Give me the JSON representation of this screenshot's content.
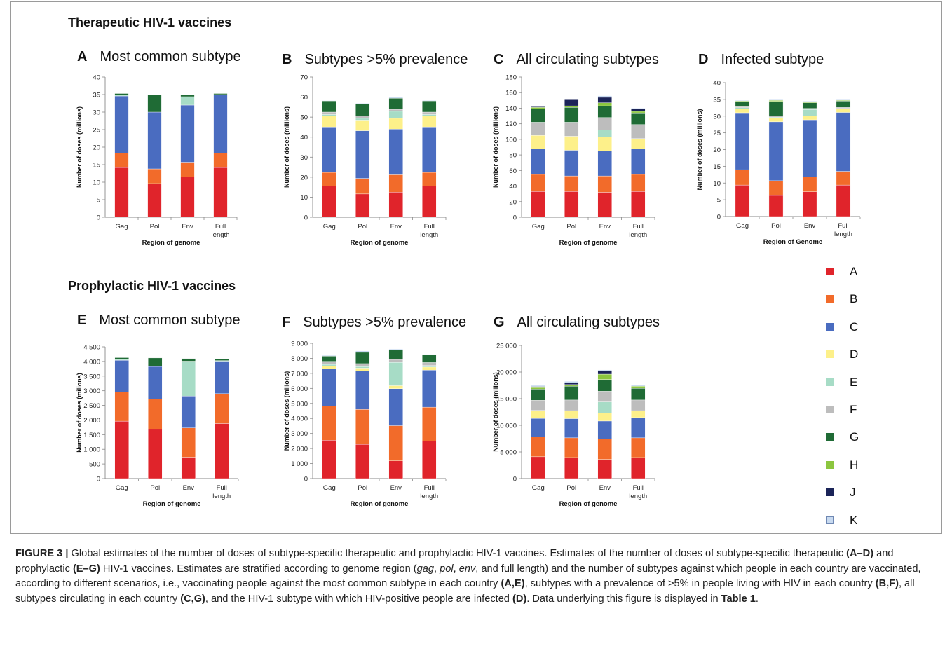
{
  "section_therapeutic": "Therapeutic HIV-1 vaccines",
  "section_prophylactic": "Prophylactic HIV-1 vaccines",
  "legend": {
    "items": [
      {
        "label": "A",
        "color": "#e0242b"
      },
      {
        "label": "B",
        "color": "#f26b2a"
      },
      {
        "label": "C",
        "color": "#4a6cc0"
      },
      {
        "label": "D",
        "color": "#fdf08a"
      },
      {
        "label": "E",
        "color": "#a7dcc6"
      },
      {
        "label": "F",
        "color": "#bdbdbd"
      },
      {
        "label": "G",
        "color": "#1f6b35"
      },
      {
        "label": "H",
        "color": "#8cc63f"
      },
      {
        "label": "J",
        "color": "#1b2458"
      },
      {
        "label": "K",
        "color": "#c8daf0"
      }
    ]
  },
  "caption": {
    "fig_label": "FIGURE 3 |",
    "t1": " Global estimates of the number of doses of subtype-specific therapeutic and prophylactic HIV-1 vaccines. Estimates of the number of doses of subtype-specific therapeutic ",
    "b1": "(A–D)",
    "t2": " and prophylactic ",
    "b2": "(E–G)",
    "t3": " HIV-1 vaccines. Estimates are stratified according to genome region (",
    "i1": "gag",
    "t4": ", ",
    "i2": "pol",
    "t5": ", ",
    "i3": "env",
    "t6": ", and full length) and the number of subtypes against which people in each country are vaccinated, according to different scenarios, i.e., vaccinating people against the most common subtype in each country ",
    "b3": "(A,E)",
    "t7": ", subtypes with a prevalence of >5% in people living with HIV in each country ",
    "b4": "(B,F)",
    "t8": ", all subtypes circulating in each country ",
    "b5": "(C,G)",
    "t9": ", and the HIV-1 subtype with which HIV-positive people are infected ",
    "b6": "(D)",
    "t10": ". Data underlying this figure is displayed in ",
    "b7": "Table 1",
    "t11": "."
  },
  "chart_data": [
    {
      "id": "A",
      "letter": "A",
      "title": "Most common subtype",
      "type": "bar",
      "ylabel": "Number of doses (millions)",
      "xlabel": "Region of genome",
      "ylim": [
        0,
        40
      ],
      "yticks": [
        "0",
        "5",
        "10",
        "15",
        "20",
        "25",
        "30",
        "35",
        "40"
      ],
      "categories": [
        "Gag",
        "Pol",
        "Env",
        "Full length"
      ],
      "series": [
        {
          "name": "A",
          "values": [
            14.2,
            9.6,
            11.5,
            14.2
          ]
        },
        {
          "name": "B",
          "values": [
            4.1,
            4.2,
            4.2,
            4.1
          ]
        },
        {
          "name": "C",
          "values": [
            16.3,
            16.2,
            16.3,
            16.7
          ]
        },
        {
          "name": "D",
          "values": [
            0,
            0,
            0,
            0
          ]
        },
        {
          "name": "E",
          "values": [
            0.3,
            0,
            2.4,
            0
          ]
        },
        {
          "name": "F",
          "values": [
            0,
            0,
            0,
            0
          ]
        },
        {
          "name": "G",
          "values": [
            0.4,
            5,
            0.5,
            0.3
          ]
        },
        {
          "name": "H",
          "values": [
            0,
            0,
            0,
            0
          ]
        },
        {
          "name": "J",
          "values": [
            0,
            0,
            0,
            0
          ]
        },
        {
          "name": "K",
          "values": [
            0,
            0,
            0,
            0
          ]
        }
      ]
    },
    {
      "id": "B",
      "letter": "B",
      "title": "Subtypes >5% prevalence",
      "type": "bar",
      "ylabel": "Number of doses (millions)",
      "xlabel": "Region of genome",
      "ylim": [
        0,
        70
      ],
      "yticks": [
        "0",
        "10",
        "20",
        "30",
        "40",
        "50",
        "60",
        "70"
      ],
      "categories": [
        "Gag",
        "Pol",
        "Env",
        "Full length"
      ],
      "series": [
        {
          "name": "A",
          "values": [
            15.6,
            11.6,
            12.5,
            15.6
          ]
        },
        {
          "name": "B",
          "values": [
            6.8,
            7.8,
            8.7,
            6.8
          ]
        },
        {
          "name": "C",
          "values": [
            22.7,
            23.8,
            22.8,
            22.7
          ]
        },
        {
          "name": "D",
          "values": [
            5.4,
            5.3,
            5.4,
            5.4
          ]
        },
        {
          "name": "E",
          "values": [
            0.8,
            0.9,
            3.5,
            0.8
          ]
        },
        {
          "name": "F",
          "values": [
            1.2,
            1.2,
            1.0,
            1.2
          ]
        },
        {
          "name": "G",
          "values": [
            5.6,
            6.1,
            5.5,
            5.6
          ]
        },
        {
          "name": "H",
          "values": [
            0,
            0,
            0,
            0
          ]
        },
        {
          "name": "J",
          "values": [
            0,
            0,
            0,
            0
          ]
        },
        {
          "name": "K",
          "values": [
            0.2,
            0.3,
            0.5,
            0.3
          ]
        }
      ]
    },
    {
      "id": "C",
      "letter": "C",
      "title": "All circulating subtypes",
      "type": "bar",
      "ylabel": "Number of doses (millions)",
      "xlabel": "Region of genome",
      "ylim": [
        0,
        180
      ],
      "yticks": [
        "0",
        "20",
        "40",
        "60",
        "80",
        "100",
        "120",
        "140",
        "160",
        "180"
      ],
      "categories": [
        "Gag",
        "Pol",
        "Env",
        "Full length"
      ],
      "series": [
        {
          "name": "A",
          "values": [
            33,
            33,
            32,
            33
          ]
        },
        {
          "name": "B",
          "values": [
            22,
            20,
            21,
            22
          ]
        },
        {
          "name": "C",
          "values": [
            33,
            33,
            32,
            33
          ]
        },
        {
          "name": "D",
          "values": [
            17,
            18,
            18,
            13
          ]
        },
        {
          "name": "E",
          "values": [
            0,
            0,
            9,
            0
          ]
        },
        {
          "name": "F",
          "values": [
            17,
            18,
            16,
            18
          ]
        },
        {
          "name": "G",
          "values": [
            17,
            19,
            15,
            15
          ]
        },
        {
          "name": "H",
          "values": [
            2,
            2,
            4,
            2
          ]
        },
        {
          "name": "J",
          "values": [
            1,
            8,
            7,
            3
          ]
        },
        {
          "name": "K",
          "values": [
            1,
            1,
            2,
            1
          ]
        }
      ]
    },
    {
      "id": "D",
      "letter": "D",
      "title": "Infected subtype",
      "type": "bar",
      "ylabel": "Number of doses (millions)",
      "xlabel": "Region of Genome",
      "ylim": [
        0,
        40
      ],
      "yticks": [
        "0",
        "5",
        "10",
        "15",
        "20",
        "25",
        "30",
        "35",
        "40"
      ],
      "categories": [
        "Gag",
        "Pol",
        "Env",
        "Full length"
      ],
      "series": [
        {
          "name": "A",
          "values": [
            9.4,
            6.3,
            7.4,
            9.4
          ]
        },
        {
          "name": "B",
          "values": [
            4.6,
            4.4,
            4.4,
            4.1
          ]
        },
        {
          "name": "C",
          "values": [
            17,
            17.6,
            17.1,
            17.6
          ]
        },
        {
          "name": "D",
          "values": [
            1.2,
            1.2,
            1.2,
            1.0
          ]
        },
        {
          "name": "E",
          "values": [
            0.3,
            0.2,
            1.9,
            0.2
          ]
        },
        {
          "name": "F",
          "values": [
            0.3,
            0.3,
            0.3,
            0.3
          ]
        },
        {
          "name": "G",
          "values": [
            1.5,
            4.4,
            1.7,
            1.9
          ]
        },
        {
          "name": "H",
          "values": [
            0.2,
            0.3,
            0.3,
            0.2
          ]
        },
        {
          "name": "J",
          "values": [
            0,
            0,
            0,
            0
          ]
        },
        {
          "name": "K",
          "values": [
            0.2,
            0.2,
            0.2,
            0.2
          ]
        }
      ]
    },
    {
      "id": "E",
      "letter": "E",
      "title": "Most common subtype",
      "type": "bar",
      "ylabel": "Number of doses (milions)",
      "xlabel": "Region of genome",
      "ylim": [
        0,
        4500
      ],
      "yticks": [
        "0",
        "500",
        "1 000",
        "1 500",
        "2 000",
        "2 500",
        "3 000",
        "3 500",
        "4 000",
        "4 500"
      ],
      "categories": [
        "Gag",
        "Pol",
        "Env",
        "Full length"
      ],
      "series": [
        {
          "name": "A",
          "values": [
            1960,
            1680,
            730,
            1880
          ]
        },
        {
          "name": "B",
          "values": [
            1000,
            1040,
            1000,
            1020
          ]
        },
        {
          "name": "C",
          "values": [
            1080,
            1110,
            1090,
            1110
          ]
        },
        {
          "name": "D",
          "values": [
            0,
            0,
            0,
            0
          ]
        },
        {
          "name": "E",
          "values": [
            30,
            0,
            1190,
            20
          ]
        },
        {
          "name": "F",
          "values": [
            0,
            0,
            0,
            0
          ]
        },
        {
          "name": "G",
          "values": [
            60,
            290,
            90,
            60
          ]
        },
        {
          "name": "H",
          "values": [
            0,
            0,
            0,
            0
          ]
        },
        {
          "name": "J",
          "values": [
            0,
            0,
            0,
            0
          ]
        },
        {
          "name": "K",
          "values": [
            0,
            0,
            0,
            0
          ]
        }
      ]
    },
    {
      "id": "F",
      "letter": "F",
      "title": "Subtypes >5% prevalence",
      "type": "bar",
      "ylabel": "Number of doses (milions)",
      "xlabel": "Region of genome",
      "ylim": [
        0,
        9000
      ],
      "yticks": [
        "0",
        "1 000",
        "2 000",
        "3 000",
        "4 000",
        "5 000",
        "6 000",
        "7 000",
        "8 000",
        "9 000"
      ],
      "categories": [
        "Gag",
        "Pol",
        "Env",
        "Full length"
      ],
      "series": [
        {
          "name": "A",
          "values": [
            2550,
            2280,
            1180,
            2500
          ]
        },
        {
          "name": "B",
          "values": [
            2280,
            2320,
            2340,
            2250
          ]
        },
        {
          "name": "C",
          "values": [
            2470,
            2550,
            2460,
            2470
          ]
        },
        {
          "name": "D",
          "values": [
            200,
            200,
            200,
            200
          ]
        },
        {
          "name": "E",
          "values": [
            100,
            100,
            1550,
            100
          ]
        },
        {
          "name": "F",
          "values": [
            200,
            200,
            200,
            200
          ]
        },
        {
          "name": "G",
          "values": [
            350,
            750,
            650,
            500
          ]
        },
        {
          "name": "H",
          "values": [
            0,
            0,
            0,
            0
          ]
        },
        {
          "name": "J",
          "values": [
            0,
            0,
            0,
            0
          ]
        },
        {
          "name": "K",
          "values": [
            50,
            100,
            50,
            50
          ]
        }
      ]
    },
    {
      "id": "G",
      "letter": "G",
      "title": "All circulating subtypes",
      "type": "bar",
      "ylabel": "Number of doses (milions)",
      "xlabel": "Region of genome",
      "ylim": [
        0,
        25000
      ],
      "yticks": [
        "0",
        "5 000",
        "10 000",
        "15 000",
        "20 000",
        "25 000"
      ],
      "categories": [
        "Gag",
        "Pol",
        "Env",
        "Full length"
      ],
      "series": [
        {
          "name": "A",
          "values": [
            4100,
            3950,
            3600,
            3950
          ]
        },
        {
          "name": "B",
          "values": [
            3700,
            3700,
            3800,
            3700
          ]
        },
        {
          "name": "C",
          "values": [
            3500,
            3600,
            3400,
            3800
          ]
        },
        {
          "name": "D",
          "values": [
            1500,
            1500,
            1500,
            1300
          ]
        },
        {
          "name": "E",
          "values": [
            0,
            0,
            2100,
            0
          ]
        },
        {
          "name": "F",
          "values": [
            1900,
            2000,
            2000,
            2000
          ]
        },
        {
          "name": "G",
          "values": [
            2100,
            2600,
            2200,
            2200
          ]
        },
        {
          "name": "H",
          "values": [
            300,
            300,
            1000,
            400
          ]
        },
        {
          "name": "J",
          "values": [
            200,
            300,
            600,
            0
          ]
        },
        {
          "name": "K",
          "values": [
            200,
            300,
            200,
            200
          ]
        }
      ]
    }
  ]
}
